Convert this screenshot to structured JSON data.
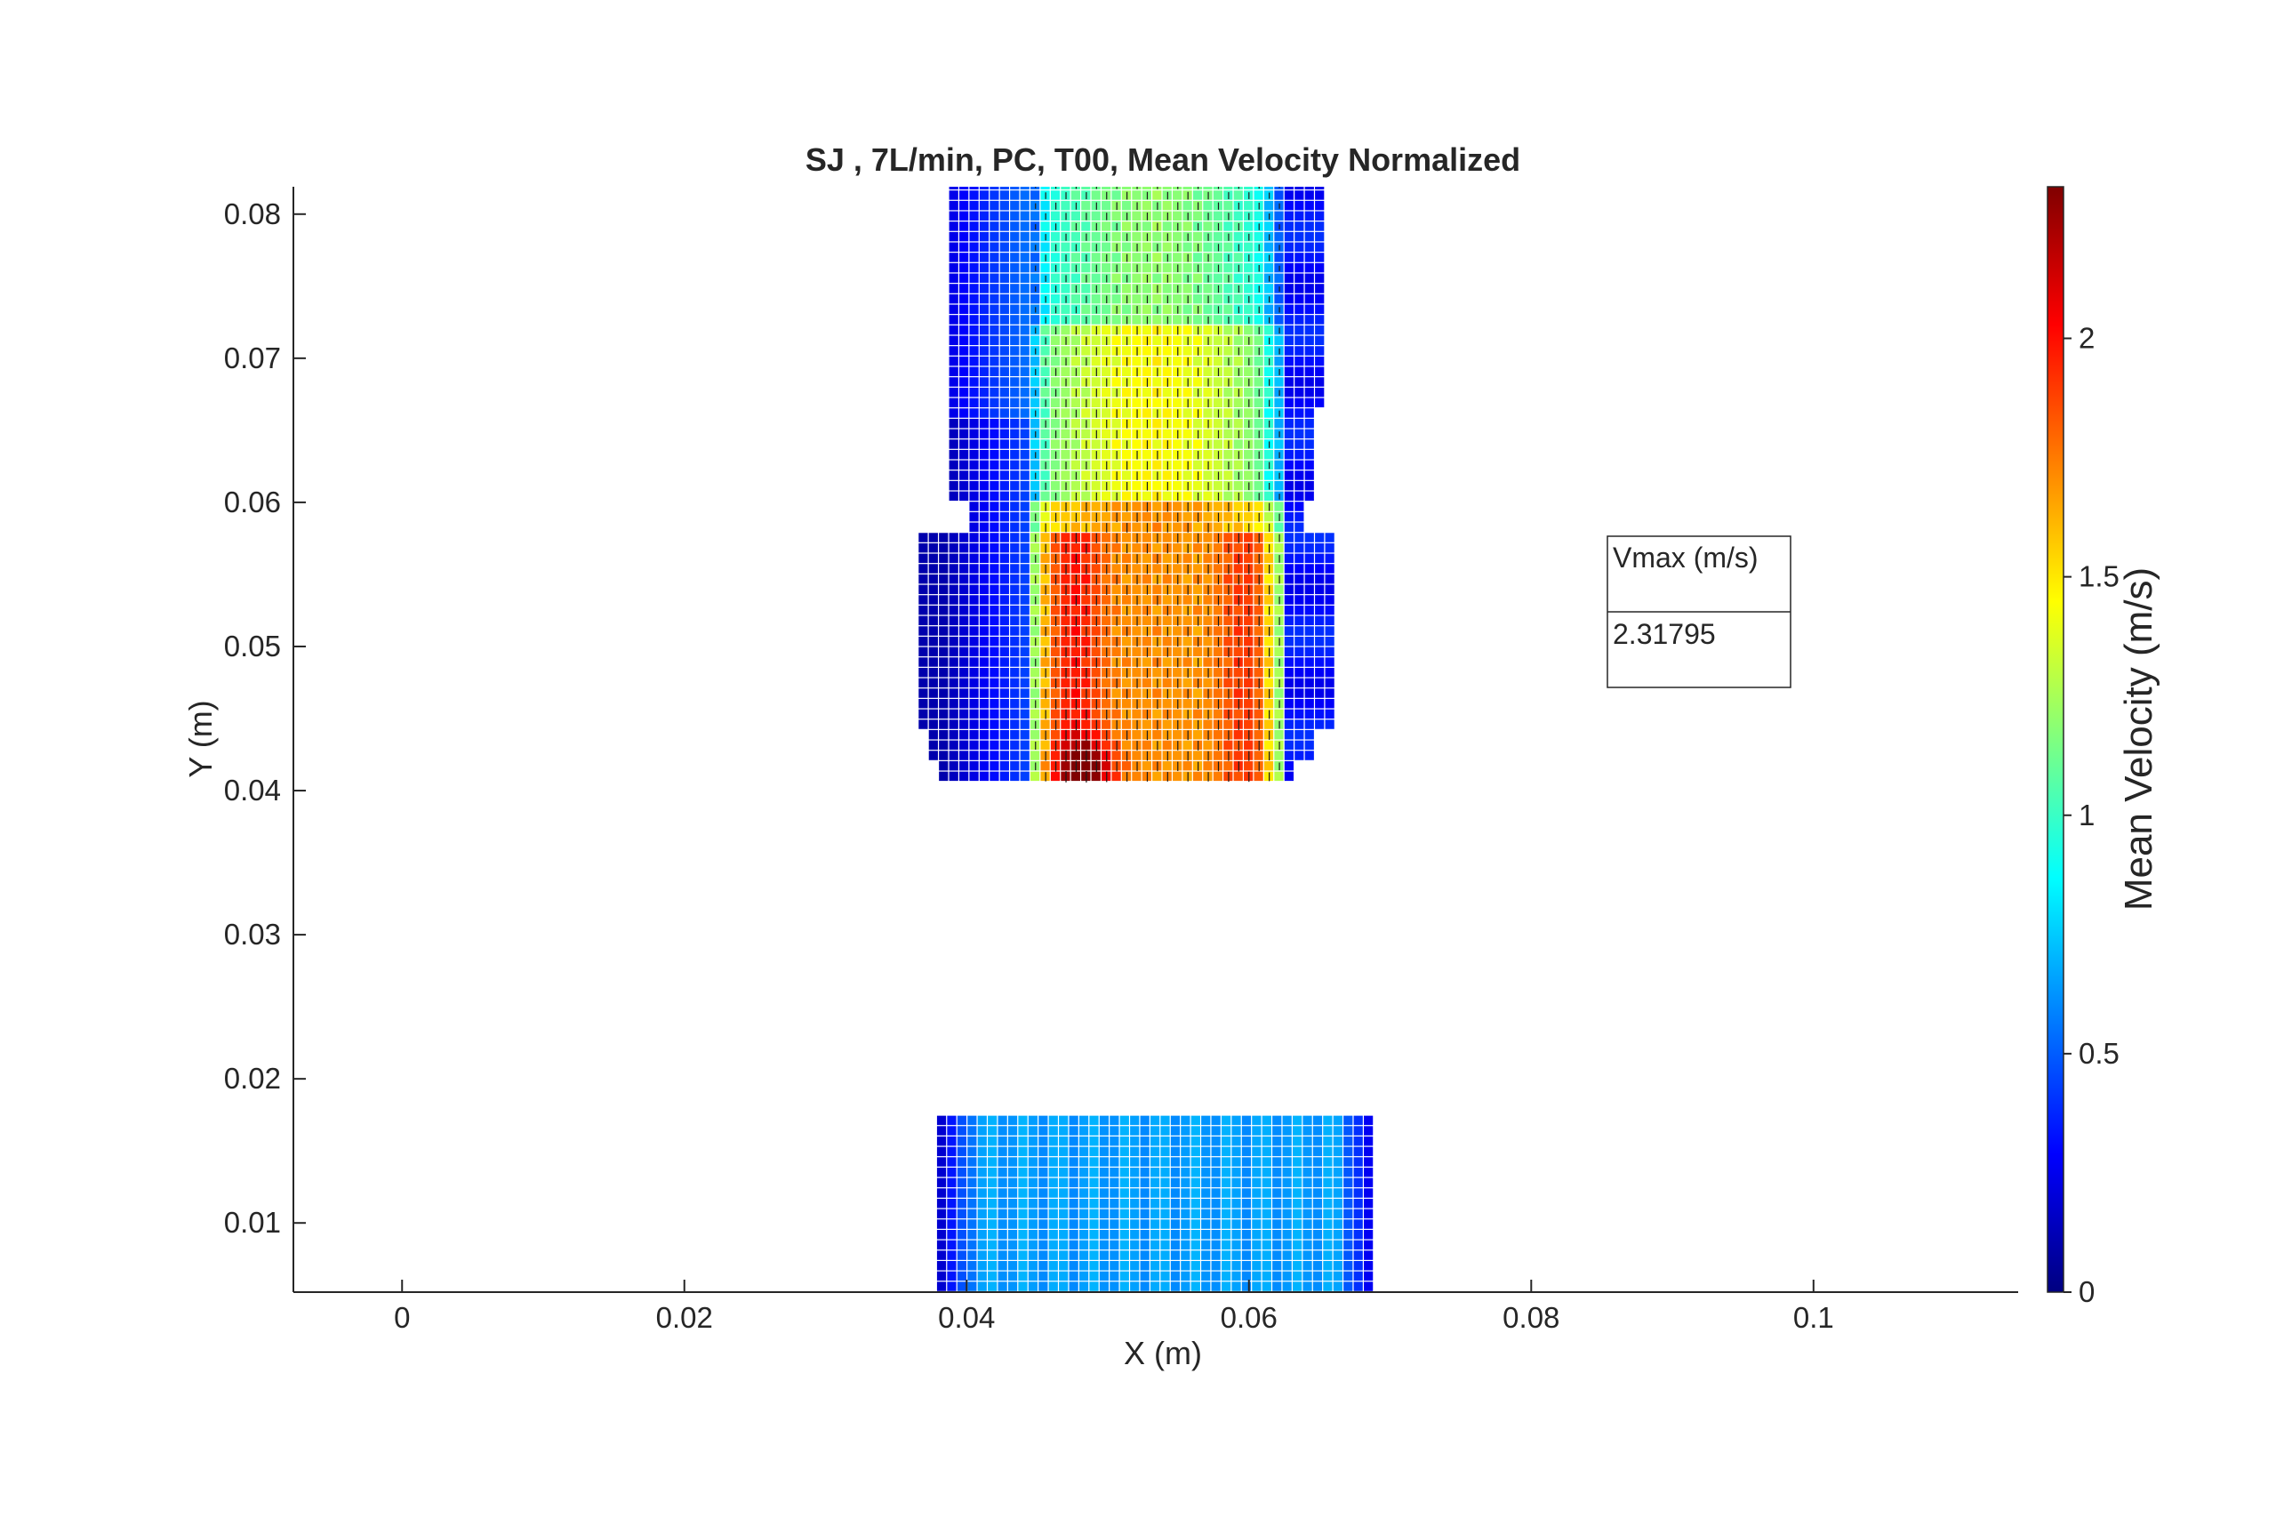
{
  "chart_data": {
    "type": "heatmap",
    "title": "SJ , 7L/min, PC, T00, Mean Velocity Normalized",
    "xlabel": "X (m)",
    "ylabel": "Y (m)",
    "xlim": [
      -0.0077,
      0.1145
    ],
    "ylim": [
      0.0052,
      0.0819
    ],
    "xticks": [
      0,
      0.02,
      0.04,
      0.06,
      0.08,
      0.1
    ],
    "xtick_labels": [
      "0",
      "0.02",
      "0.04",
      "0.06",
      "0.08",
      "0.1"
    ],
    "yticks": [
      0.01,
      0.02,
      0.03,
      0.04,
      0.05,
      0.06,
      0.07,
      0.08
    ],
    "ytick_labels": [
      "0.01",
      "0.02",
      "0.03",
      "0.04",
      "0.05",
      "0.06",
      "0.07",
      "0.08"
    ],
    "colormap": "jet",
    "colorbar": {
      "label": "Mean Velocity (m/s)",
      "range": [
        0,
        2.31795
      ],
      "ticks": [
        0,
        0.5,
        1,
        1.5,
        2
      ],
      "tick_labels": [
        "0",
        "0.5",
        "1",
        "1.5",
        "2"
      ]
    },
    "regions": [
      {
        "name": "upper",
        "x_range": [
          0.0386,
          0.0653
        ],
        "y_range": [
          0.0406,
          0.0819
        ],
        "cell": 0.00072,
        "core_x_range": [
          0.0444,
          0.0622
        ],
        "peak_velocity": 2.31795,
        "peak_location": [
          0.0485,
          0.0415
        ]
      },
      {
        "name": "lower",
        "x_range": [
          0.0379,
          0.0692
        ],
        "y_range": [
          0.0052,
          0.0173
        ],
        "cell": 0.00072,
        "mean_velocity": 0.65
      }
    ],
    "vector_field": "mean velocity vectors, predominantly downward (-y) in the jet core",
    "annotation": {
      "header": "Vmax (m/s)",
      "value": "2.31795"
    },
    "grid": false
  }
}
